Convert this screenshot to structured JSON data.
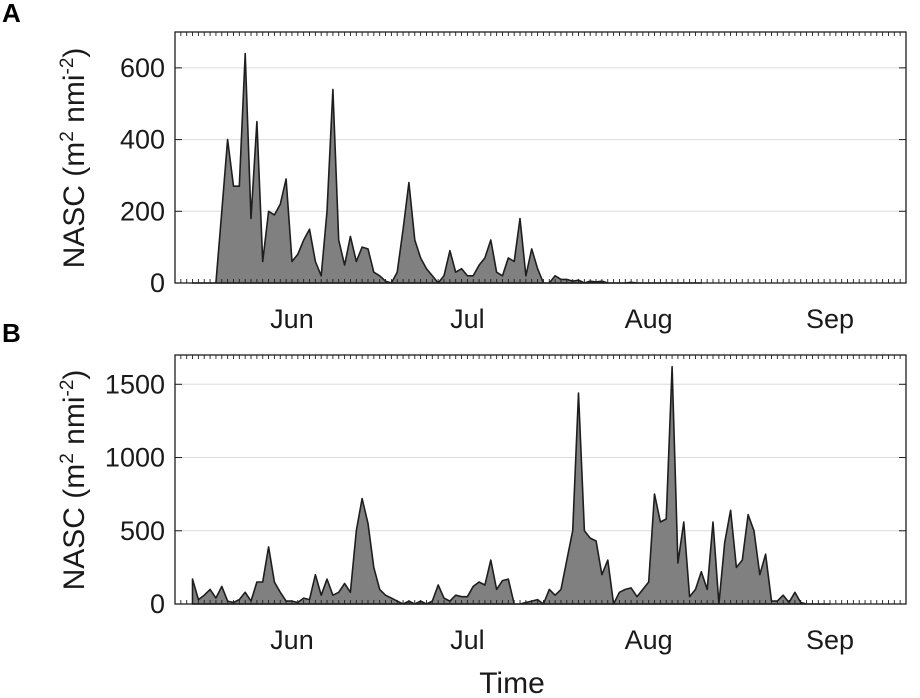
{
  "chart_data": [
    {
      "panel_label": "A",
      "type": "area",
      "xlabel": "",
      "ylabel": "NASC (m² nmi⁻²)",
      "ylabel_main": "NASC (m",
      "ylabel_sup1": "2",
      "ylabel_mid": " nmi",
      "ylabel_sup2": "-2",
      "ylabel_end": ")",
      "ylim": [
        0,
        700
      ],
      "yticks": [
        0,
        200,
        400,
        600
      ],
      "ytick_labels": [
        "0",
        "200",
        "400",
        "600"
      ],
      "xlim_days": [
        0,
        125
      ],
      "xticks": [
        {
          "label": "Jun",
          "day": 20
        },
        {
          "label": "Jul",
          "day": 50
        },
        {
          "label": "Aug",
          "day": 81
        },
        {
          "label": "Sep",
          "day": 112
        }
      ],
      "grid": "horizontal",
      "fill_color": "#808080",
      "series": [
        {
          "x": [
            3,
            6,
            7,
            8,
            9,
            10,
            11,
            12,
            13,
            14,
            15,
            16,
            17,
            18,
            19,
            20,
            21,
            22,
            23,
            24,
            25,
            26,
            27,
            28,
            29,
            30,
            31,
            32,
            33,
            34,
            35,
            36,
            37,
            38,
            39,
            40,
            41,
            42,
            43,
            44,
            45,
            46,
            47,
            48,
            49,
            50,
            51,
            52,
            53,
            54,
            55,
            56,
            57,
            58,
            59,
            60,
            61,
            62,
            63,
            64,
            65,
            66,
            67,
            68,
            69,
            70,
            71,
            72,
            73,
            74,
            75,
            76,
            77,
            78,
            79,
            80,
            81,
            82,
            83,
            84,
            85,
            86,
            87,
            88,
            89,
            90
          ],
          "y": [
            0,
            0,
            0,
            200,
            400,
            270,
            270,
            640,
            180,
            450,
            60,
            200,
            190,
            220,
            290,
            60,
            80,
            120,
            150,
            60,
            20,
            200,
            540,
            120,
            50,
            130,
            60,
            100,
            95,
            30,
            20,
            5,
            0,
            30,
            150,
            280,
            120,
            70,
            40,
            20,
            0,
            20,
            90,
            30,
            40,
            20,
            20,
            50,
            70,
            120,
            30,
            20,
            70,
            60,
            180,
            20,
            95,
            40,
            0,
            0,
            20,
            10,
            10,
            5,
            8,
            0,
            5,
            3,
            5,
            0,
            0,
            0,
            0,
            2,
            0,
            0,
            0,
            0,
            0,
            0,
            0,
            0,
            0,
            0,
            0,
            0
          ]
        }
      ]
    },
    {
      "panel_label": "B",
      "type": "area",
      "xlabel": "Time",
      "ylabel": "NASC (m² nmi⁻²)",
      "ylabel_main": "NASC (m",
      "ylabel_sup1": "2",
      "ylabel_mid": " nmi",
      "ylabel_sup2": "-2",
      "ylabel_end": ")",
      "ylim": [
        0,
        1700
      ],
      "yticks": [
        0,
        500,
        1000,
        1500
      ],
      "ytick_labels": [
        "0",
        "500",
        "1000",
        "1500"
      ],
      "xlim_days": [
        0,
        125
      ],
      "xticks": [
        {
          "label": "Jun",
          "day": 20
        },
        {
          "label": "Jul",
          "day": 50
        },
        {
          "label": "Aug",
          "day": 81
        },
        {
          "label": "Sep",
          "day": 112
        }
      ],
      "grid": "horizontal",
      "fill_color": "#808080",
      "series": [
        {
          "x": [
            3,
            4,
            5,
            6,
            7,
            8,
            9,
            10,
            11,
            12,
            13,
            14,
            15,
            16,
            17,
            18,
            19,
            20,
            21,
            22,
            23,
            24,
            25,
            26,
            27,
            28,
            29,
            30,
            31,
            32,
            33,
            34,
            35,
            36,
            37,
            38,
            39,
            40,
            41,
            42,
            43,
            44,
            45,
            46,
            47,
            48,
            49,
            50,
            51,
            52,
            53,
            54,
            55,
            56,
            57,
            58,
            59,
            60,
            61,
            62,
            63,
            64,
            65,
            66,
            67,
            68,
            69,
            70,
            71,
            72,
            73,
            74,
            75,
            76,
            77,
            78,
            79,
            80,
            81,
            82,
            83,
            84,
            85,
            86,
            87,
            88,
            89,
            90,
            91,
            92,
            93,
            94,
            95,
            96,
            97,
            98,
            99,
            100,
            101,
            102,
            103,
            104,
            105,
            106,
            107,
            108,
            109,
            110,
            111,
            112
          ],
          "y": [
            170,
            30,
            60,
            100,
            40,
            120,
            20,
            10,
            30,
            80,
            20,
            150,
            150,
            390,
            150,
            80,
            20,
            20,
            10,
            40,
            30,
            200,
            60,
            170,
            60,
            80,
            140,
            80,
            500,
            720,
            550,
            250,
            100,
            60,
            40,
            20,
            0,
            20,
            0,
            20,
            0,
            20,
            130,
            40,
            20,
            60,
            50,
            50,
            120,
            150,
            130,
            300,
            100,
            160,
            170,
            0,
            0,
            10,
            20,
            30,
            0,
            100,
            60,
            100,
            300,
            500,
            1440,
            500,
            450,
            430,
            200,
            300,
            0,
            80,
            100,
            110,
            50,
            100,
            150,
            750,
            560,
            580,
            1620,
            280,
            560,
            50,
            100,
            220,
            100,
            560,
            0,
            420,
            640,
            250,
            300,
            610,
            500,
            200,
            340,
            20,
            20,
            60,
            10,
            80,
            10,
            0,
            0,
            0,
            0,
            0
          ]
        }
      ]
    }
  ]
}
